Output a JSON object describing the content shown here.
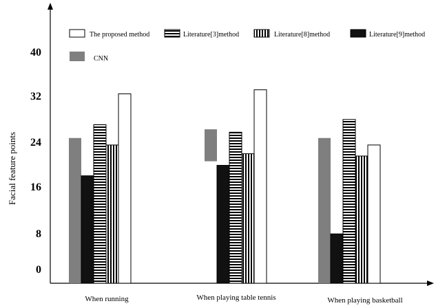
{
  "chart_data": {
    "type": "bar",
    "title": "",
    "xlabel": "",
    "ylabel": "Facial feature points",
    "ylim": [
      0,
      48
    ],
    "yticks": [
      "0",
      "8",
      "16",
      "24",
      "32",
      "40"
    ],
    "categories": [
      "When running",
      "When  playing table tennis",
      "When  playing basketball"
    ],
    "series": [
      {
        "name": "CNN",
        "values": [
          25,
          26.5,
          25
        ],
        "floating_low": [
          null,
          21,
          null
        ],
        "fill": "gray"
      },
      {
        "name": "Literature[9]method",
        "values": [
          18.5,
          20.3,
          8.5
        ],
        "fill": "black"
      },
      {
        "name": "Literature[3]method",
        "values": [
          27.3,
          26,
          28.2
        ],
        "fill": "horizontal-stripes"
      },
      {
        "name": "Literature[8]method",
        "values": [
          23.8,
          22.3,
          21.9
        ],
        "fill": "vertical-stripes"
      },
      {
        "name": "The proposed method",
        "values": [
          32.6,
          33.3,
          23.8
        ],
        "fill": "white"
      }
    ],
    "legend": [
      {
        "label": "The proposed method",
        "fill": "white"
      },
      {
        "label": "Literature[3]method",
        "fill": "horizontal-stripes"
      },
      {
        "label": "Literature[8]method",
        "fill": "vertical-stripes"
      },
      {
        "label": "Literature[9]method",
        "fill": "black"
      },
      {
        "label": "CNN",
        "fill": "gray"
      }
    ],
    "legend_position": "top",
    "grid": false
  },
  "colors": {
    "gray": "#7f7f7f",
    "black": "#111111",
    "white": "#ffffff",
    "stroke": "#000000"
  }
}
